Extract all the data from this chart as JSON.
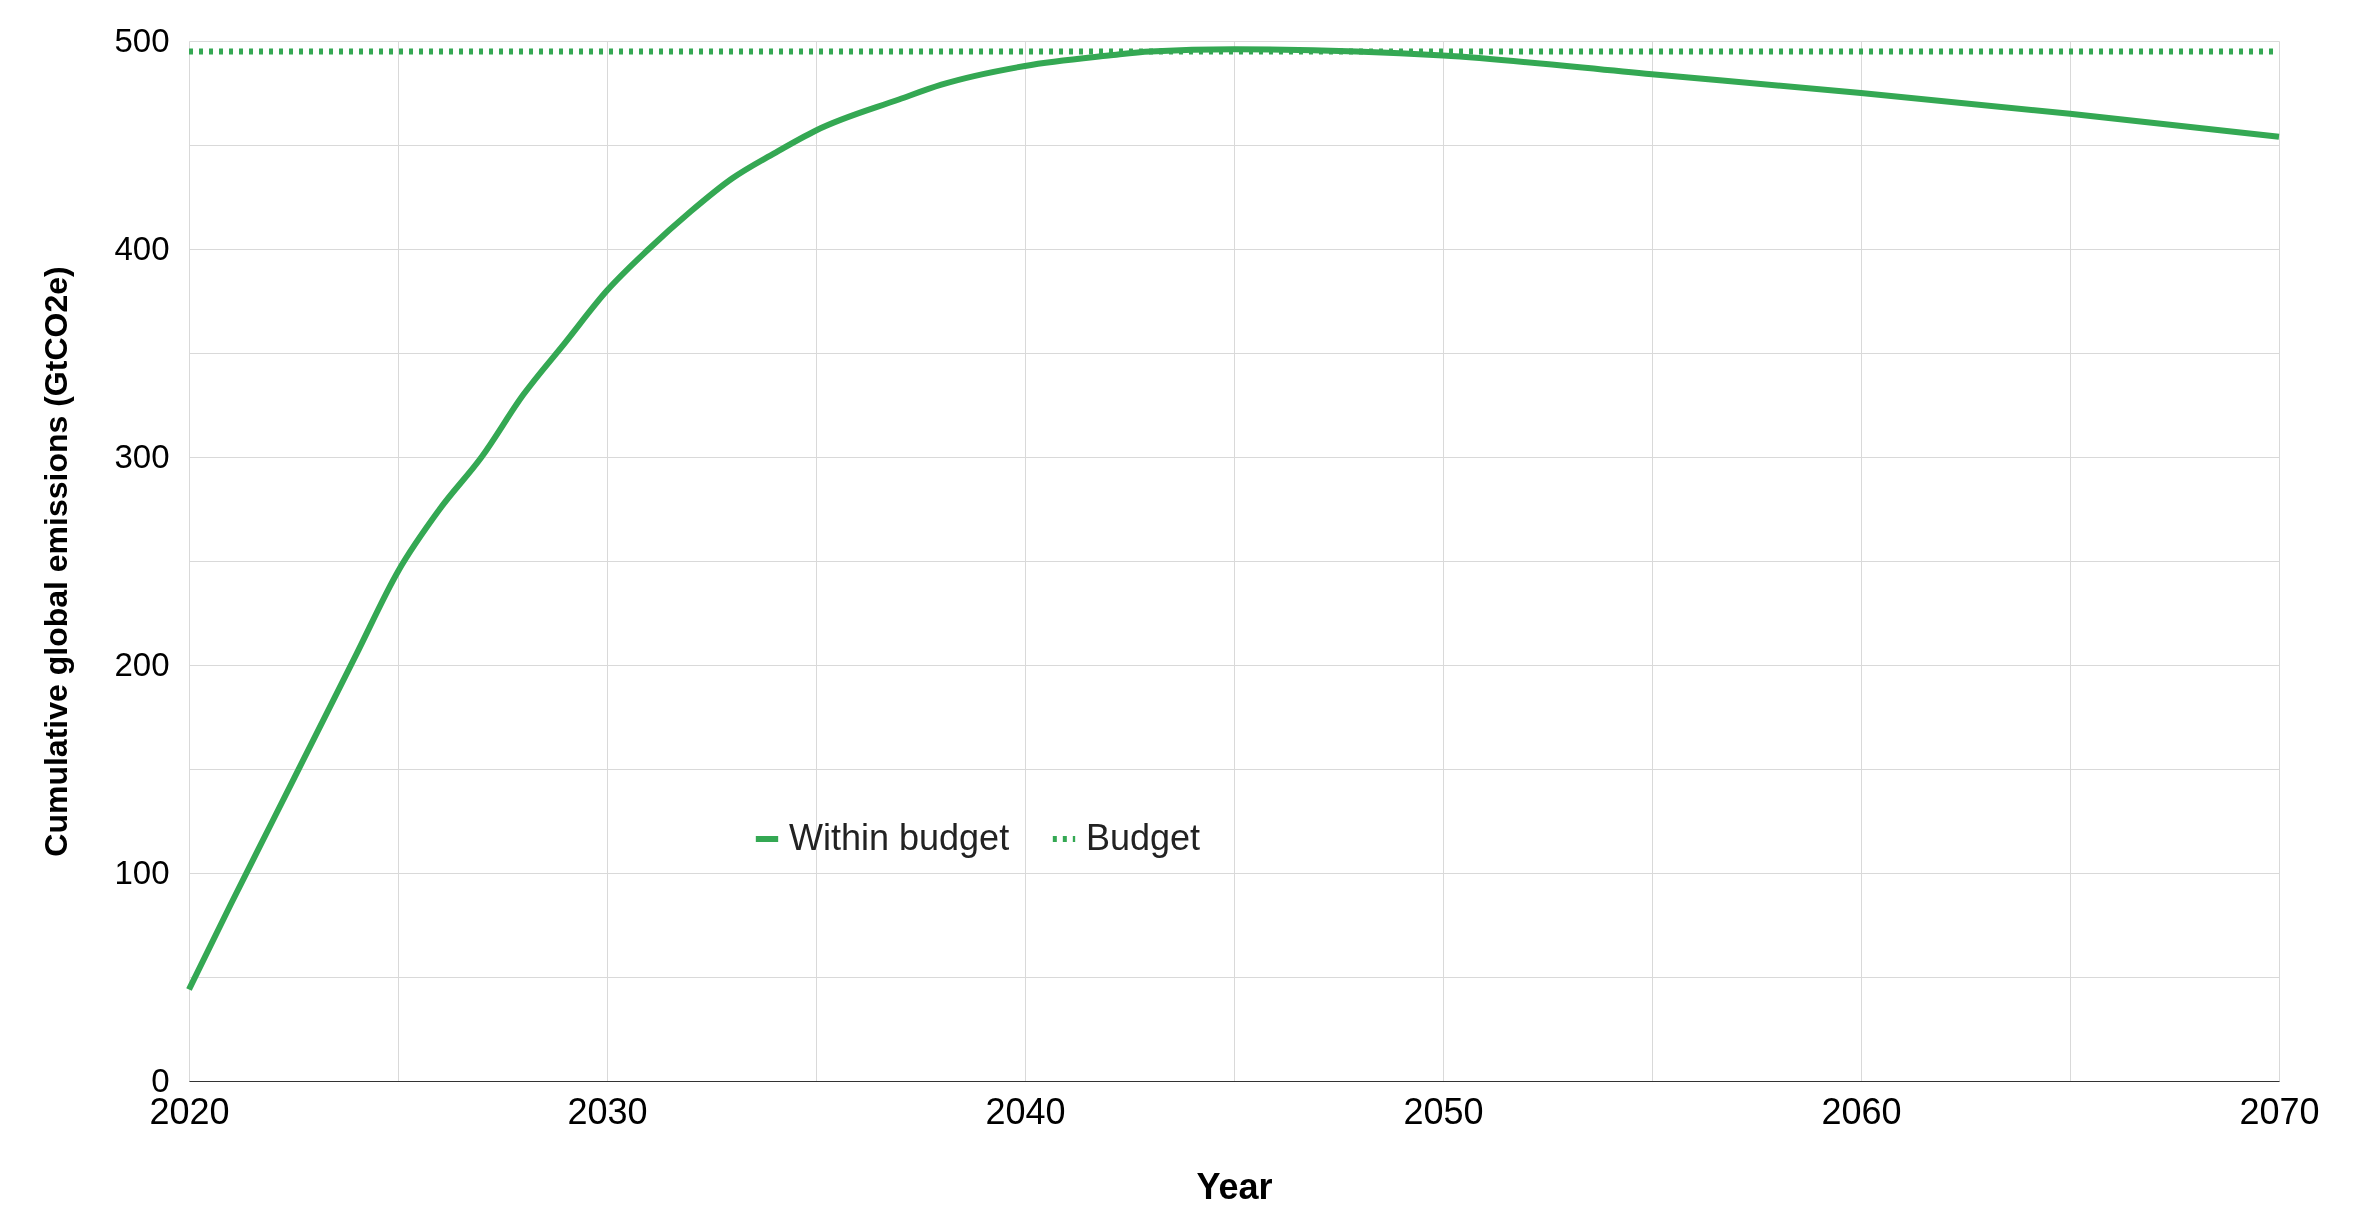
{
  "chart_data": {
    "type": "line",
    "xlabel": "Year",
    "ylabel": "Cumulative global emissions (GtCO2e)",
    "xlim": [
      2020,
      2070
    ],
    "ylim": [
      0,
      500
    ],
    "xticks": [
      2020,
      {
        "value": 2025,
        "label": null
      },
      2030,
      {
        "value": 2035,
        "label": null
      },
      2040,
      {
        "value": 2045,
        "label": null
      },
      2050,
      {
        "value": 2055,
        "label": null
      },
      2060,
      {
        "value": 2065,
        "label": null
      },
      2070
    ],
    "yticks": [
      0,
      {
        "value": 50,
        "label": null
      },
      100,
      {
        "value": 150,
        "label": null
      },
      200,
      {
        "value": 250,
        "label": null
      },
      300,
      {
        "value": 350,
        "label": null
      },
      400,
      {
        "value": 450,
        "label": null
      },
      500
    ],
    "grid": true,
    "legend": "bottom",
    "marker": "none",
    "series": [
      {
        "name": "Within budget",
        "color": "#34a853",
        "line_style": "solid",
        "x": [
          2020,
          2021,
          2022,
          2023,
          2024,
          2025,
          2026,
          2027,
          2028,
          2029,
          2030,
          2031,
          2032,
          2033,
          2034,
          2035,
          2037,
          2038,
          2040,
          2042,
          2043,
          2045,
          2050,
          2055,
          2060,
          2065,
          2070
        ],
        "values": [
          44,
          85,
          125,
          165,
          205,
          245,
          275,
          300,
          330,
          355,
          380,
          400,
          418,
          434,
          446,
          457,
          472,
          479,
          488,
          493,
          495,
          496,
          493,
          484,
          475,
          465,
          454
        ]
      },
      {
        "name": "Budget",
        "color": "#34a853",
        "line_style": "dotted",
        "x": [
          2020,
          2070
        ],
        "values": [
          495,
          495
        ]
      }
    ]
  }
}
